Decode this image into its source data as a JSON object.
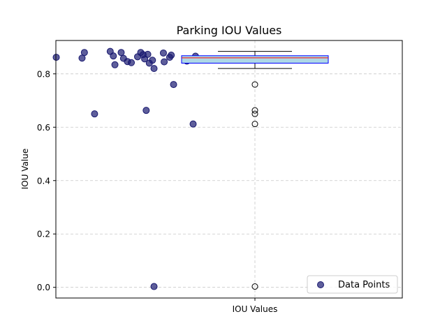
{
  "chart_data": {
    "type": "scatter+box",
    "title": "Parking IOU Values",
    "xlabel": "",
    "ylabel": "IOU Value",
    "ylim": [
      -0.04,
      0.925
    ],
    "grid": true,
    "x_tick_label": "IOU Values",
    "y_ticks": [
      0.0,
      0.2,
      0.4,
      0.6,
      0.8
    ],
    "y_tick_labels": [
      "0.0",
      "0.2",
      "0.4",
      "0.6",
      "0.8"
    ],
    "legend": {
      "position": "lower-right",
      "entries": [
        {
          "label": "Data Points",
          "color": "#191970"
        }
      ]
    },
    "points": [
      {
        "jitter": -0.254,
        "value": 0.862
      },
      {
        "jitter": -0.218,
        "value": 0.88
      },
      {
        "jitter": -0.221,
        "value": 0.859
      },
      {
        "jitter": -0.205,
        "value": 0.65
      },
      {
        "jitter": -0.185,
        "value": 0.884
      },
      {
        "jitter": -0.181,
        "value": 0.867
      },
      {
        "jitter": -0.179,
        "value": 0.834
      },
      {
        "jitter": -0.171,
        "value": 0.88
      },
      {
        "jitter": -0.168,
        "value": 0.858
      },
      {
        "jitter": -0.163,
        "value": 0.846
      },
      {
        "jitter": -0.158,
        "value": 0.842
      },
      {
        "jitter": -0.15,
        "value": 0.864
      },
      {
        "jitter": -0.146,
        "value": 0.88
      },
      {
        "jitter": -0.143,
        "value": 0.872
      },
      {
        "jitter": -0.141,
        "value": 0.856
      },
      {
        "jitter": -0.139,
        "value": 0.663
      },
      {
        "jitter": -0.137,
        "value": 0.873
      },
      {
        "jitter": -0.135,
        "value": 0.84
      },
      {
        "jitter": -0.131,
        "value": 0.851
      },
      {
        "jitter": -0.129,
        "value": 0.82
      },
      {
        "jitter": -0.129,
        "value": 0.003
      },
      {
        "jitter": -0.117,
        "value": 0.878
      },
      {
        "jitter": -0.116,
        "value": 0.845
      },
      {
        "jitter": -0.109,
        "value": 0.862
      },
      {
        "jitter": -0.107,
        "value": 0.87
      },
      {
        "jitter": -0.104,
        "value": 0.76
      },
      {
        "jitter": -0.087,
        "value": 0.848
      },
      {
        "jitter": -0.079,
        "value": 0.612
      },
      {
        "jitter": -0.076,
        "value": 0.866
      }
    ],
    "box": {
      "whisker_low": 0.82,
      "q1": 0.84,
      "median": 0.86,
      "q3": 0.868,
      "whisker_high": 0.884,
      "outliers": [
        0.76,
        0.663,
        0.65,
        0.612,
        0.003
      ],
      "fill_color": "#add8e6",
      "edge_color": "#0000ff",
      "median_color": "#ff0000"
    },
    "point_color": "#191970"
  }
}
